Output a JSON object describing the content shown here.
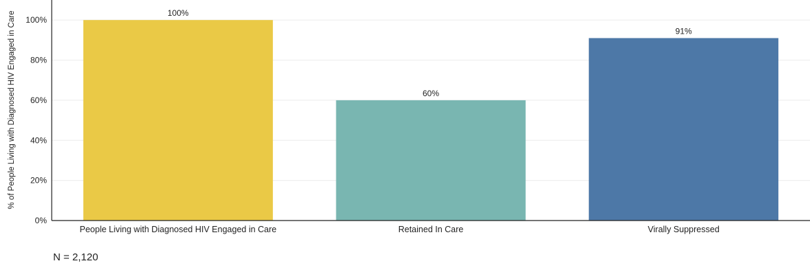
{
  "chart_data": {
    "type": "bar",
    "title": "",
    "xlabel": "",
    "ylabel": "% of People Living with Diagnosed HIV Engaged in Care",
    "ylim": [
      0,
      110
    ],
    "yticks": [
      0,
      20,
      40,
      60,
      80,
      100
    ],
    "ytick_labels": [
      "0%",
      "20%",
      "40%",
      "60%",
      "80%",
      "100%"
    ],
    "categories": [
      "People Living with Diagnosed HIV Engaged in Care",
      "Retained In Care",
      "Virally Suppressed"
    ],
    "values": [
      100,
      60,
      91
    ],
    "data_labels": [
      "100%",
      "60%",
      "91%"
    ],
    "colors": [
      "#eac946",
      "#79b6b1",
      "#4d78a7"
    ],
    "grid": true
  },
  "footnote": "N = 2,120"
}
